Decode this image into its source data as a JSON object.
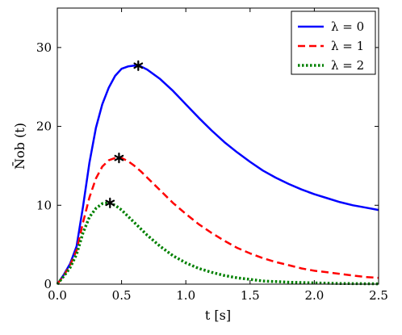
{
  "chart_data": {
    "type": "line",
    "title": "",
    "xlabel": "t [s]",
    "ylabel": "N̄ob (t)",
    "xlim": [
      0,
      2.5
    ],
    "ylim": [
      0,
      35
    ],
    "x_ticks": [
      "0.0",
      "0.5",
      "1.0",
      "1.5",
      "2.0",
      "2.5"
    ],
    "y_ticks": [
      "0",
      "10",
      "20",
      "30"
    ],
    "grid": false,
    "legend_position": "top-right",
    "series": [
      {
        "name": "λ = 0",
        "color": "#0000ff",
        "dash": "solid",
        "x": [
          0,
          0.05,
          0.1,
          0.15,
          0.2,
          0.25,
          0.3,
          0.35,
          0.4,
          0.45,
          0.5,
          0.55,
          0.6,
          0.65,
          0.7,
          0.8,
          0.9,
          1.0,
          1.1,
          1.2,
          1.3,
          1.4,
          1.5,
          1.6,
          1.7,
          1.8,
          1.9,
          2.0,
          2.1,
          2.2,
          2.3,
          2.4,
          2.5
        ],
        "y": [
          0,
          1.2,
          2.6,
          4.8,
          9.8,
          15.4,
          19.8,
          22.8,
          24.9,
          26.4,
          27.3,
          27.6,
          27.7,
          27.6,
          27.2,
          26.0,
          24.5,
          22.8,
          21.1,
          19.5,
          18.0,
          16.7,
          15.5,
          14.4,
          13.5,
          12.7,
          12.0,
          11.4,
          10.9,
          10.4,
          10.0,
          9.7,
          9.4
        ]
      },
      {
        "name": "λ = 1",
        "color": "#ff0000",
        "dash": "dashed",
        "x": [
          0,
          0.05,
          0.1,
          0.15,
          0.2,
          0.25,
          0.3,
          0.35,
          0.4,
          0.45,
          0.5,
          0.55,
          0.6,
          0.65,
          0.7,
          0.8,
          0.9,
          1.0,
          1.1,
          1.2,
          1.3,
          1.4,
          1.5,
          1.6,
          1.7,
          1.8,
          1.9,
          2.0,
          2.1,
          2.2,
          2.3,
          2.4,
          2.5
        ],
        "y": [
          0,
          1.1,
          2.4,
          4.3,
          7.8,
          11.0,
          13.4,
          14.9,
          15.7,
          16.0,
          16.0,
          15.6,
          15.0,
          14.3,
          13.5,
          11.9,
          10.3,
          8.9,
          7.6,
          6.5,
          5.5,
          4.6,
          3.9,
          3.3,
          2.8,
          2.4,
          2.0,
          1.7,
          1.5,
          1.3,
          1.1,
          0.9,
          0.8
        ]
      },
      {
        "name": "λ = 2",
        "color": "#008000",
        "dash": "dotted",
        "x": [
          0,
          0.05,
          0.1,
          0.15,
          0.2,
          0.25,
          0.3,
          0.35,
          0.4,
          0.45,
          0.5,
          0.55,
          0.6,
          0.7,
          0.8,
          0.9,
          1.0,
          1.1,
          1.2,
          1.3,
          1.4,
          1.5,
          1.6,
          1.8,
          2.0,
          2.2,
          2.5
        ],
        "y": [
          0,
          1.0,
          2.1,
          3.8,
          6.5,
          8.5,
          9.6,
          10.2,
          10.3,
          10.0,
          9.4,
          8.6,
          7.8,
          6.2,
          4.8,
          3.6,
          2.7,
          2.0,
          1.5,
          1.1,
          0.8,
          0.6,
          0.4,
          0.25,
          0.15,
          0.08,
          0.04
        ]
      }
    ],
    "maxima": [
      {
        "x": 0.63,
        "y": 27.7
      },
      {
        "x": 0.48,
        "y": 16.0
      },
      {
        "x": 0.41,
        "y": 10.3
      }
    ]
  }
}
